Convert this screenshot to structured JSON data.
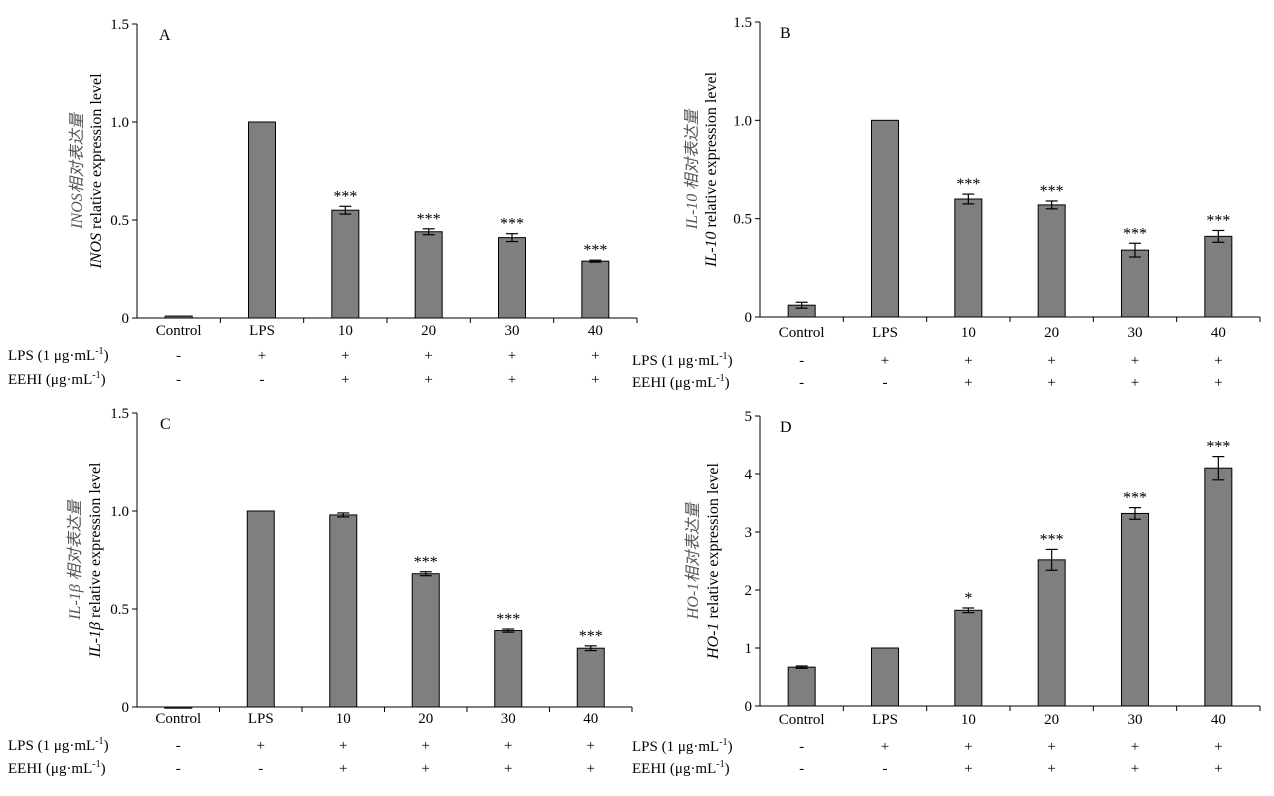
{
  "chart_data": [
    {
      "panel": "A",
      "type": "bar",
      "categories": [
        "Control",
        "LPS",
        "10",
        "20",
        "30",
        "40"
      ],
      "values": [
        0.01,
        1.0,
        0.55,
        0.44,
        0.41,
        0.29
      ],
      "errors": [
        0,
        0,
        0.02,
        0.015,
        0.02,
        0.005
      ],
      "significance": [
        "",
        "",
        "***",
        "***",
        "***",
        "***"
      ],
      "ylim": [
        0,
        1.5
      ],
      "yticks": [
        "0",
        "0.5",
        "1.0",
        "1.5"
      ],
      "ylabel_cn": "INOS相对表达量",
      "ylabel_gene": "INOS",
      "ylabel_rest": " relative expression level",
      "bar_color": "#7f7f7f",
      "rows": [
        {
          "label_main": "LPS (1 μg·mL",
          "label_sup": "-1",
          "label_end": ")",
          "signs": [
            "-",
            "+",
            "+",
            "+",
            "+",
            "+"
          ]
        },
        {
          "label_main": "EEHI (μg·mL",
          "label_sup": "-1",
          "label_end": ")",
          "signs": [
            "-",
            "-",
            "+",
            "+",
            "+",
            "+"
          ]
        }
      ]
    },
    {
      "panel": "B",
      "type": "bar",
      "categories": [
        "Control",
        "LPS",
        "10",
        "20",
        "30",
        "40"
      ],
      "values": [
        0.06,
        1.0,
        0.6,
        0.57,
        0.34,
        0.41
      ],
      "errors": [
        0.015,
        0,
        0.025,
        0.02,
        0.035,
        0.03
      ],
      "significance": [
        "",
        "",
        "***",
        "***",
        "***",
        "***"
      ],
      "ylim": [
        0,
        1.5
      ],
      "yticks": [
        "0",
        "0.5",
        "1.0",
        "1.5"
      ],
      "ylabel_cn": "IL-10 相对表达量",
      "ylabel_gene": "IL-10",
      "ylabel_rest": " relative expression level",
      "bar_color": "#7f7f7f",
      "rows": [
        {
          "label_main": "LPS (1 μg·mL",
          "label_sup": "-1",
          "label_end": ")",
          "signs": [
            "-",
            "+",
            "+",
            "+",
            "+",
            "+"
          ]
        },
        {
          "label_main": "EEHI (μg·mL",
          "label_sup": "-1",
          "label_end": ")",
          "signs": [
            "-",
            "-",
            "+",
            "+",
            "+",
            "+"
          ]
        }
      ]
    },
    {
      "panel": "C",
      "type": "bar",
      "categories": [
        "Control",
        "LPS",
        "10",
        "20",
        "30",
        "40"
      ],
      "values": [
        0.0,
        1.0,
        0.98,
        0.68,
        0.39,
        0.3
      ],
      "errors": [
        0,
        0,
        0.01,
        0.01,
        0.008,
        0.012
      ],
      "significance": [
        "",
        "",
        "",
        "***",
        "***",
        "***"
      ],
      "ylim": [
        0,
        1.5
      ],
      "yticks": [
        "0",
        "0.5",
        "1.0",
        "1.5"
      ],
      "ylabel_cn": "IL-1β 相对表达量",
      "ylabel_gene": "IL-1β",
      "ylabel_rest": " relative expression level",
      "bar_color": "#7f7f7f",
      "rows": [
        {
          "label_main": "LPS (1 μg·mL",
          "label_sup": "-1",
          "label_end": ")",
          "signs": [
            "-",
            "+",
            "+",
            "+",
            "+",
            "+"
          ]
        },
        {
          "label_main": "EEHI (μg·mL",
          "label_sup": "-1",
          "label_end": ")",
          "signs": [
            "-",
            "-",
            "+",
            "+",
            "+",
            "+"
          ]
        }
      ]
    },
    {
      "panel": "D",
      "type": "bar",
      "categories": [
        "Control",
        "LPS",
        "10",
        "20",
        "30",
        "40"
      ],
      "values": [
        0.67,
        1.0,
        1.65,
        2.52,
        3.32,
        4.1
      ],
      "errors": [
        0.02,
        0,
        0.04,
        0.18,
        0.1,
        0.2
      ],
      "significance": [
        "",
        "",
        "*",
        "***",
        "***",
        "***"
      ],
      "ylim": [
        0,
        5
      ],
      "yticks": [
        "0",
        "1",
        "2",
        "3",
        "4",
        "5"
      ],
      "ylabel_cn": "HO-1相对表达量",
      "ylabel_gene": "HO-1",
      "ylabel_rest": " relative expression level",
      "bar_color": "#7f7f7f",
      "rows": [
        {
          "label_main": "LPS (1 μg·mL",
          "label_sup": "-1",
          "label_end": ")",
          "signs": [
            "-",
            "+",
            "+",
            "+",
            "+",
            "+"
          ]
        },
        {
          "label_main": "EEHI (μg·mL",
          "label_sup": "-1",
          "label_end": ")",
          "signs": [
            "-",
            "-",
            "+",
            "+",
            "+",
            "+"
          ]
        }
      ]
    }
  ]
}
